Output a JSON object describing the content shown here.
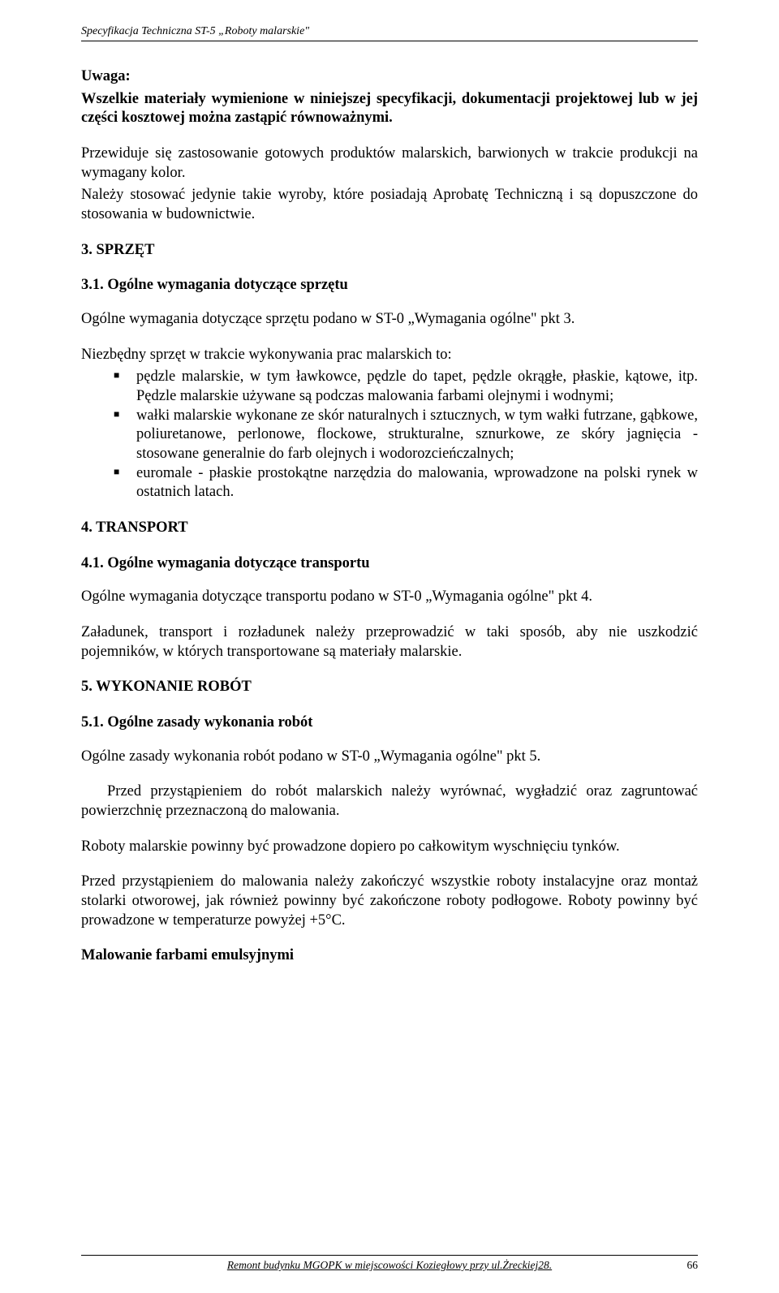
{
  "header": "Specyfikacja Techniczna ST-5 „Roboty malarskie\"",
  "uwaga_label": "Uwaga:",
  "uwaga_p1": "Wszelkie materiały wymienione w niniejszej specyfikacji, dokumentacji projektowej lub w jej części kosztowej można zastąpić równoważnymi.",
  "uwaga_p2": "Przewiduje się zastosowanie gotowych produktów malarskich, barwionych w trakcie produkcji na wymagany kolor.",
  "uwaga_p3": "Należy stosować jedynie takie wyroby, które posiadają Aprobatę Techniczną i są dopuszczone do stosowania w budownictwie.",
  "s3_title": "3. SPRZĘT",
  "s3_1_title": "3.1. Ogólne wymagania dotyczące sprzętu",
  "s3_1_p1": "Ogólne wymagania dotyczące sprzętu podano w ST-0 „Wymagania ogólne\" pkt 3.",
  "s3_1_intro": "Niezbędny sprzęt w trakcie wykonywania prac malarskich to:",
  "s3_1_li1": "pędzle malarskie, w tym ławkowce, pędzle do tapet, pędzle okrągłe, płaskie, kątowe, itp. Pędzle malarskie używane są podczas malowania farbami olejnymi i wodnymi;",
  "s3_1_li2": "wałki malarskie wykonane ze skór naturalnych i sztucznych, w tym wałki futrzane, gąbkowe, poliuretanowe, perlonowe, flockowe, strukturalne, sznurkowe, ze skóry jagnięcia - stosowane generalnie do farb olejnych i wodorozcieńczalnych;",
  "s3_1_li3": "euromale - płaskie prostokątne narzędzia do malowania, wprowadzone na polski rynek w ostatnich latach.",
  "s4_title": "4. TRANSPORT",
  "s4_1_title": "4.1. Ogólne wymagania dotyczące transportu",
  "s4_1_p1": "Ogólne wymagania dotyczące transportu podano w ST-0 „Wymagania ogólne\" pkt 4.",
  "s4_1_p2": "Załadunek, transport i rozładunek należy przeprowadzić w taki sposób, aby nie uszkodzić pojemników, w których transportowane są materiały malarskie.",
  "s5_title": "5. WYKONANIE ROBÓT",
  "s5_1_title": "5.1. Ogólne zasady wykonania robót",
  "s5_1_p1": "Ogólne zasady wykonania robót podano w ST-0 „Wymagania ogólne\" pkt 5.",
  "s5_1_p2": "Przed przystąpieniem do robót malarskich należy wyrównać, wygładzić oraz zagruntować powierzchnię przeznaczoną do malowania.",
  "s5_1_p3": "Roboty malarskie powinny być prowadzone dopiero po całkowitym wyschnięciu tynków.",
  "s5_1_p4": "Przed przystąpieniem do malowania należy zakończyć wszystkie roboty instalacyjne oraz montaż stolarki otworowej, jak również powinny być zakończone roboty podłogowe. Roboty powinny być prowadzone w temperaturze powyżej +5°C.",
  "mal_title": "Malowanie farbami emulsyjnymi",
  "footer_text": "Remont budynku MGOPK w miejscowości Koziegłowy przy ul.Żreckiej28.",
  "page_number": "66"
}
